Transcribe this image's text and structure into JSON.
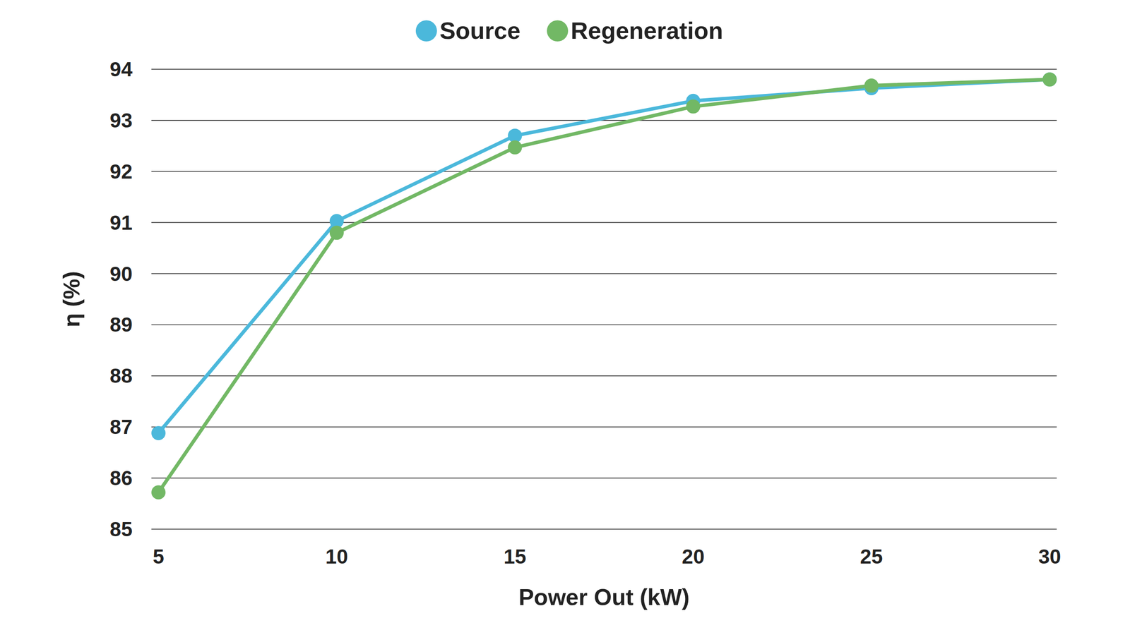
{
  "chart_data": {
    "type": "line",
    "x": [
      5,
      10,
      15,
      20,
      25,
      30
    ],
    "xlabel": "Power Out (kW)",
    "ylabel": "η (%)",
    "series": [
      {
        "name": "Source",
        "color": "#4bb8db",
        "values": [
          86.88,
          91.03,
          92.7,
          93.38,
          93.63,
          93.8
        ]
      },
      {
        "name": "Regeneration",
        "color": "#72b865",
        "values": [
          85.72,
          90.8,
          92.47,
          93.27,
          93.68,
          93.8
        ]
      }
    ],
    "xlim": [
      5,
      30
    ],
    "ylim": [
      85,
      94
    ],
    "xticks": [
      5,
      10,
      15,
      20,
      25,
      30
    ],
    "yticks": [
      85,
      86,
      87,
      88,
      89,
      90,
      91,
      92,
      93,
      94
    ],
    "grid": true,
    "legend": "top",
    "marker": "circle"
  }
}
